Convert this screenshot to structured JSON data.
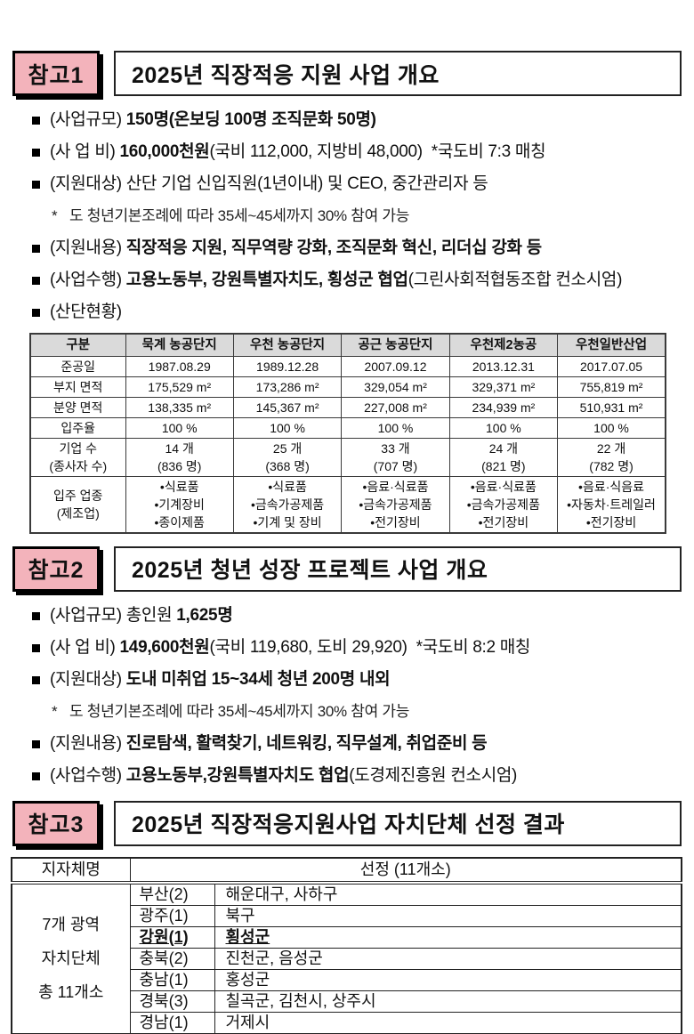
{
  "colors": {
    "badge_pink": "#F3B3BB",
    "table_header_gray": "#DADADA",
    "border_black": "#111111"
  },
  "sections": [
    {
      "badge": "참고1",
      "title": "2025년 직장적응 지원 사업 개요",
      "bullets": [
        {
          "marker": "square",
          "segments": [
            {
              "t": "(사업규모) ",
              "b": false
            },
            {
              "t": "150명(온보딩 100명 조직문화 50명)",
              "b": true
            }
          ]
        },
        {
          "marker": "square",
          "segments": [
            {
              "t": "(사 업 비) ",
              "b": false
            },
            {
              "t": "160,000천원",
              "b": true
            },
            {
              "t": "(국비 112,000, 지방비 48,000)  *국도비 7:3 매칭",
              "b": false
            }
          ]
        },
        {
          "marker": "square",
          "segments": [
            {
              "t": "(지원대상) 산단 기업 신입직원(1년이내) 및 CEO, 중간관리자 등",
              "b": false
            }
          ]
        },
        {
          "marker": "star",
          "segments": [
            {
              "t": "도 청년기본조례에 따라 35세~45세까지 30% 참여 가능",
              "b": false
            }
          ]
        },
        {
          "marker": "square",
          "segments": [
            {
              "t": "(지원내용) ",
              "b": false
            },
            {
              "t": "직장적응 지원, 직무역량 강화, 조직문화 혁신, 리더십 강화 등",
              "b": true
            }
          ]
        },
        {
          "marker": "square",
          "segments": [
            {
              "t": "(사업수행) ",
              "b": false
            },
            {
              "t": "고용노동부, 강원특별자치도, 횡성군 협업",
              "b": true
            },
            {
              "t": "(그린사회적협동조합 컨소시엄)",
              "b": false
            }
          ]
        },
        {
          "marker": "square",
          "segments": [
            {
              "t": "(산단현황)",
              "b": false
            }
          ]
        }
      ],
      "table": {
        "header": [
          "구분",
          "묵계 농공단지",
          "우천 농공단지",
          "공근 농공단지",
          "우천제2농공",
          "우천일반산업"
        ],
        "rows": [
          {
            "label": "준공일",
            "cells": [
              "1987.08.29",
              "1989.12.28",
              "2007.09.12",
              "2013.12.31",
              "2017.07.05"
            ]
          },
          {
            "label": "부지 면적",
            "cells": [
              "175,529 m²",
              "173,286 m²",
              "329,054 m²",
              "329,371 m²",
              "755,819 m²"
            ]
          },
          {
            "label": "분양 면적",
            "cells": [
              "138,335 m²",
              "145,367 m²",
              "227,008 m²",
              "234,939 m²",
              "510,931 m²"
            ]
          },
          {
            "label": "입주율",
            "cells": [
              "100 %",
              "100 %",
              "100 %",
              "100 %",
              "100 %"
            ]
          },
          {
            "label": [
              "기업 수",
              "(종사자 수)"
            ],
            "cells": [
              [
                "14 개",
                "(836 명)"
              ],
              [
                "25 개",
                "(368 명)"
              ],
              [
                "33 개",
                "(707 명)"
              ],
              [
                "24 개",
                "(821 명)"
              ],
              [
                "22 개",
                "(782 명)"
              ]
            ]
          },
          {
            "label": [
              "입주 업종",
              "(제조업)"
            ],
            "cells": [
              [
                "•식료품",
                "•기계장비",
                "•종이제품"
              ],
              [
                "•식료품",
                "•금속가공제품",
                "•기계 및 장비"
              ],
              [
                "•음료·식료품",
                "•금속가공제품",
                "•전기장비"
              ],
              [
                "•음료·식료품",
                "•금속가공제품",
                "•전기장비"
              ],
              [
                "•음료·식음료",
                "•자동차·트레일러",
                "•전기장비"
              ]
            ]
          }
        ]
      }
    },
    {
      "badge": "참고2",
      "title": "2025년 청년 성장 프로젝트 사업 개요",
      "bullets": [
        {
          "marker": "square",
          "segments": [
            {
              "t": "(사업규모) 총인원 ",
              "b": false
            },
            {
              "t": "1,625명",
              "b": true
            }
          ]
        },
        {
          "marker": "square",
          "segments": [
            {
              "t": "(사 업 비) ",
              "b": false
            },
            {
              "t": "149,600천원",
              "b": true
            },
            {
              "t": "(국비 119,680, 도비 29,920)  *국도비 8:2 매칭",
              "b": false
            }
          ]
        },
        {
          "marker": "square",
          "segments": [
            {
              "t": "(지원대상) ",
              "b": false
            },
            {
              "t": "도내 미취업 15~34세 청년 200명 내외",
              "b": true
            }
          ]
        },
        {
          "marker": "star",
          "segments": [
            {
              "t": "도 청년기본조례에 따라 35세~45세까지 30% 참여 가능",
              "b": false
            }
          ]
        },
        {
          "marker": "square",
          "segments": [
            {
              "t": "(지원내용) ",
              "b": false
            },
            {
              "t": "진로탐색, 활력찾기, 네트워킹, 직무설계, 취업준비 등",
              "b": true
            }
          ]
        },
        {
          "marker": "square",
          "segments": [
            {
              "t": "(사업수행) ",
              "b": false
            },
            {
              "t": "고용노동부,강원특별자치도 협업",
              "b": true
            },
            {
              "t": "(도경제진흥원 컨소시엄)",
              "b": false
            }
          ]
        }
      ]
    },
    {
      "badge": "참고3",
      "title": "2025년 직장적응지원사업 자치단체 선정 결과",
      "table": {
        "col1_header": "지자체명",
        "col2_header": "선정 (11개소)",
        "merged_label": [
          "7개 광역",
          "자치단체",
          "총 11개소"
        ],
        "rows": [
          {
            "region": "부산(2)",
            "areas": "해운대구, 사하구",
            "bold": false
          },
          {
            "region": "광주(1)",
            "areas": "북구",
            "bold": false
          },
          {
            "region": "강원(1)",
            "areas": "횡성군",
            "bold": true
          },
          {
            "region": "충북(2)",
            "areas": "진천군, 음성군",
            "bold": false
          },
          {
            "region": "충남(1)",
            "areas": "홍성군",
            "bold": false
          },
          {
            "region": "경북(3)",
            "areas": "칠곡군, 김천시, 상주시",
            "bold": false
          },
          {
            "region": "경남(1)",
            "areas": "거제시",
            "bold": false
          }
        ]
      }
    }
  ]
}
